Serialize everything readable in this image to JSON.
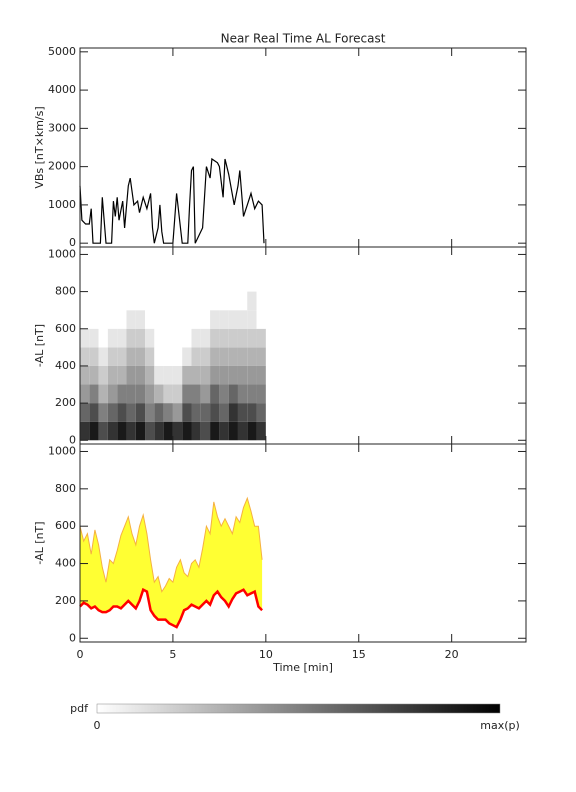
{
  "chart_data": [
    {
      "type": "line",
      "title": "Near Real Time AL Forecast",
      "ylabel": "VBs [nT×km/s]",
      "color": "#000000",
      "x": [
        0,
        0.1,
        0.3,
        0.5,
        0.6,
        0.7,
        1.1,
        1.2,
        1.4,
        1.7,
        1.8,
        1.9,
        2.0,
        2.1,
        2.3,
        2.4,
        2.6,
        2.7,
        2.9,
        3.1,
        3.2,
        3.4,
        3.6,
        3.8,
        3.9,
        4.0,
        4.2,
        4.3,
        4.4,
        4.5,
        5.0,
        5.2,
        5.5,
        5.8,
        5.9,
        6.0,
        6.1,
        6.2,
        6.6,
        6.8,
        7.0,
        7.1,
        7.4,
        7.5,
        7.7,
        7.8,
        8.0,
        8.3,
        8.5,
        8.6,
        8.8,
        9.0,
        9.2,
        9.4,
        9.6,
        9.8,
        9.9
      ],
      "values": [
        1500,
        600,
        500,
        500,
        900,
        0,
        0,
        1200,
        0,
        0,
        1100,
        700,
        1200,
        600,
        1100,
        400,
        1500,
        1700,
        1000,
        1100,
        800,
        1200,
        900,
        1300,
        400,
        0,
        400,
        1000,
        300,
        0,
        0,
        1300,
        0,
        0,
        1000,
        1900,
        2000,
        0,
        400,
        2000,
        1700,
        2200,
        2100,
        2000,
        1200,
        2200,
        1800,
        1000,
        1500,
        1900,
        700,
        1000,
        1300,
        900,
        1100,
        1000,
        0
      ],
      "xlim": [
        0,
        24
      ],
      "ylim": [
        -100,
        5100
      ],
      "xticks": [
        0,
        5,
        10,
        15,
        20
      ],
      "yticks": [
        0,
        1000,
        2000,
        3000,
        4000,
        5000
      ]
    },
    {
      "type": "heatmap",
      "ylabel": "-AL [nT]",
      "x_bins": [
        0,
        0.5,
        1,
        1.5,
        2,
        2.5,
        3,
        3.5,
        4,
        4.5,
        5,
        5.5,
        6,
        6.5,
        7,
        7.5,
        8,
        8.5,
        9,
        9.5,
        10
      ],
      "y_bins": [
        0,
        100,
        200,
        300,
        400,
        500,
        600,
        700,
        800
      ],
      "values": [
        [
          0.8,
          0.9,
          0.7,
          0.8,
          0.9,
          0.8,
          0.9,
          0.7,
          0.8,
          0.9,
          0.8,
          0.9,
          0.8,
          0.7,
          0.9,
          0.8,
          0.9,
          0.8,
          0.9,
          0.8
        ],
        [
          0.6,
          0.7,
          0.5,
          0.6,
          0.7,
          0.6,
          0.7,
          0.5,
          0.6,
          0.5,
          0.4,
          0.7,
          0.6,
          0.6,
          0.7,
          0.6,
          0.8,
          0.7,
          0.7,
          0.6
        ],
        [
          0.4,
          0.5,
          0.3,
          0.4,
          0.5,
          0.5,
          0.5,
          0.4,
          0.3,
          0.2,
          0.2,
          0.5,
          0.5,
          0.4,
          0.6,
          0.5,
          0.6,
          0.5,
          0.5,
          0.5
        ],
        [
          0.3,
          0.3,
          0.2,
          0.3,
          0.3,
          0.4,
          0.4,
          0.3,
          0.1,
          0.1,
          0.1,
          0.3,
          0.3,
          0.3,
          0.4,
          0.4,
          0.4,
          0.4,
          0.4,
          0.4
        ],
        [
          0.2,
          0.2,
          0.1,
          0.2,
          0.2,
          0.3,
          0.3,
          0.2,
          0,
          0,
          0,
          0.1,
          0.2,
          0.2,
          0.3,
          0.3,
          0.3,
          0.3,
          0.3,
          0.3
        ],
        [
          0.1,
          0.1,
          0,
          0.1,
          0.1,
          0.2,
          0.2,
          0.1,
          0,
          0,
          0,
          0,
          0.1,
          0.1,
          0.2,
          0.2,
          0.2,
          0.2,
          0.2,
          0.2
        ],
        [
          0,
          0,
          0,
          0,
          0,
          0.1,
          0.1,
          0,
          0,
          0,
          0,
          0,
          0,
          0,
          0.1,
          0.1,
          0.1,
          0.1,
          0.1,
          0
        ],
        [
          0,
          0,
          0,
          0,
          0,
          0,
          0,
          0,
          0,
          0,
          0,
          0,
          0,
          0,
          0,
          0,
          0,
          0,
          0.1,
          0
        ]
      ],
      "xlim": [
        0,
        24
      ],
      "ylim": [
        -20,
        1040
      ],
      "xticks": [
        0,
        5,
        10,
        15,
        20
      ],
      "yticks": [
        0,
        200,
        400,
        600,
        800,
        1000
      ],
      "colorbar": {
        "label": "pdf",
        "min_label": "0",
        "max_label": "max(p)"
      }
    },
    {
      "type": "band",
      "ylabel": "-AL [nT]",
      "xlabel": "Time [min]",
      "x": [
        0,
        0.2,
        0.4,
        0.6,
        0.8,
        1.0,
        1.2,
        1.4,
        1.6,
        1.8,
        2.0,
        2.2,
        2.4,
        2.6,
        2.8,
        3.0,
        3.2,
        3.4,
        3.6,
        3.8,
        4.0,
        4.2,
        4.4,
        4.6,
        4.8,
        5.0,
        5.2,
        5.4,
        5.6,
        5.8,
        6.0,
        6.2,
        6.4,
        6.6,
        6.8,
        7.0,
        7.2,
        7.4,
        7.6,
        7.8,
        8.0,
        8.2,
        8.4,
        8.6,
        8.8,
        9.0,
        9.2,
        9.4,
        9.6,
        9.8
      ],
      "upper": [
        600,
        520,
        560,
        450,
        580,
        500,
        380,
        300,
        420,
        400,
        470,
        550,
        600,
        650,
        560,
        500,
        600,
        660,
        560,
        420,
        300,
        330,
        250,
        280,
        320,
        300,
        380,
        420,
        350,
        330,
        400,
        420,
        380,
        480,
        600,
        560,
        730,
        650,
        600,
        640,
        600,
        560,
        650,
        620,
        700,
        750,
        680,
        600,
        600,
        420
      ],
      "median": [
        170,
        190,
        180,
        160,
        170,
        150,
        140,
        140,
        150,
        170,
        170,
        160,
        180,
        200,
        180,
        160,
        200,
        260,
        250,
        150,
        120,
        100,
        100,
        100,
        80,
        70,
        60,
        100,
        150,
        160,
        180,
        170,
        160,
        180,
        200,
        180,
        230,
        250,
        220,
        200,
        170,
        210,
        240,
        250,
        260,
        230,
        240,
        250,
        170,
        150
      ],
      "upper_color": "#f5b041",
      "fill": "#ffff33",
      "median_color": "#ff0000",
      "xlim": [
        0,
        24
      ],
      "ylim": [
        -20,
        1040
      ],
      "xticks": [
        0,
        5,
        10,
        15,
        20
      ],
      "yticks": [
        0,
        200,
        400,
        600,
        800,
        1000
      ]
    }
  ]
}
